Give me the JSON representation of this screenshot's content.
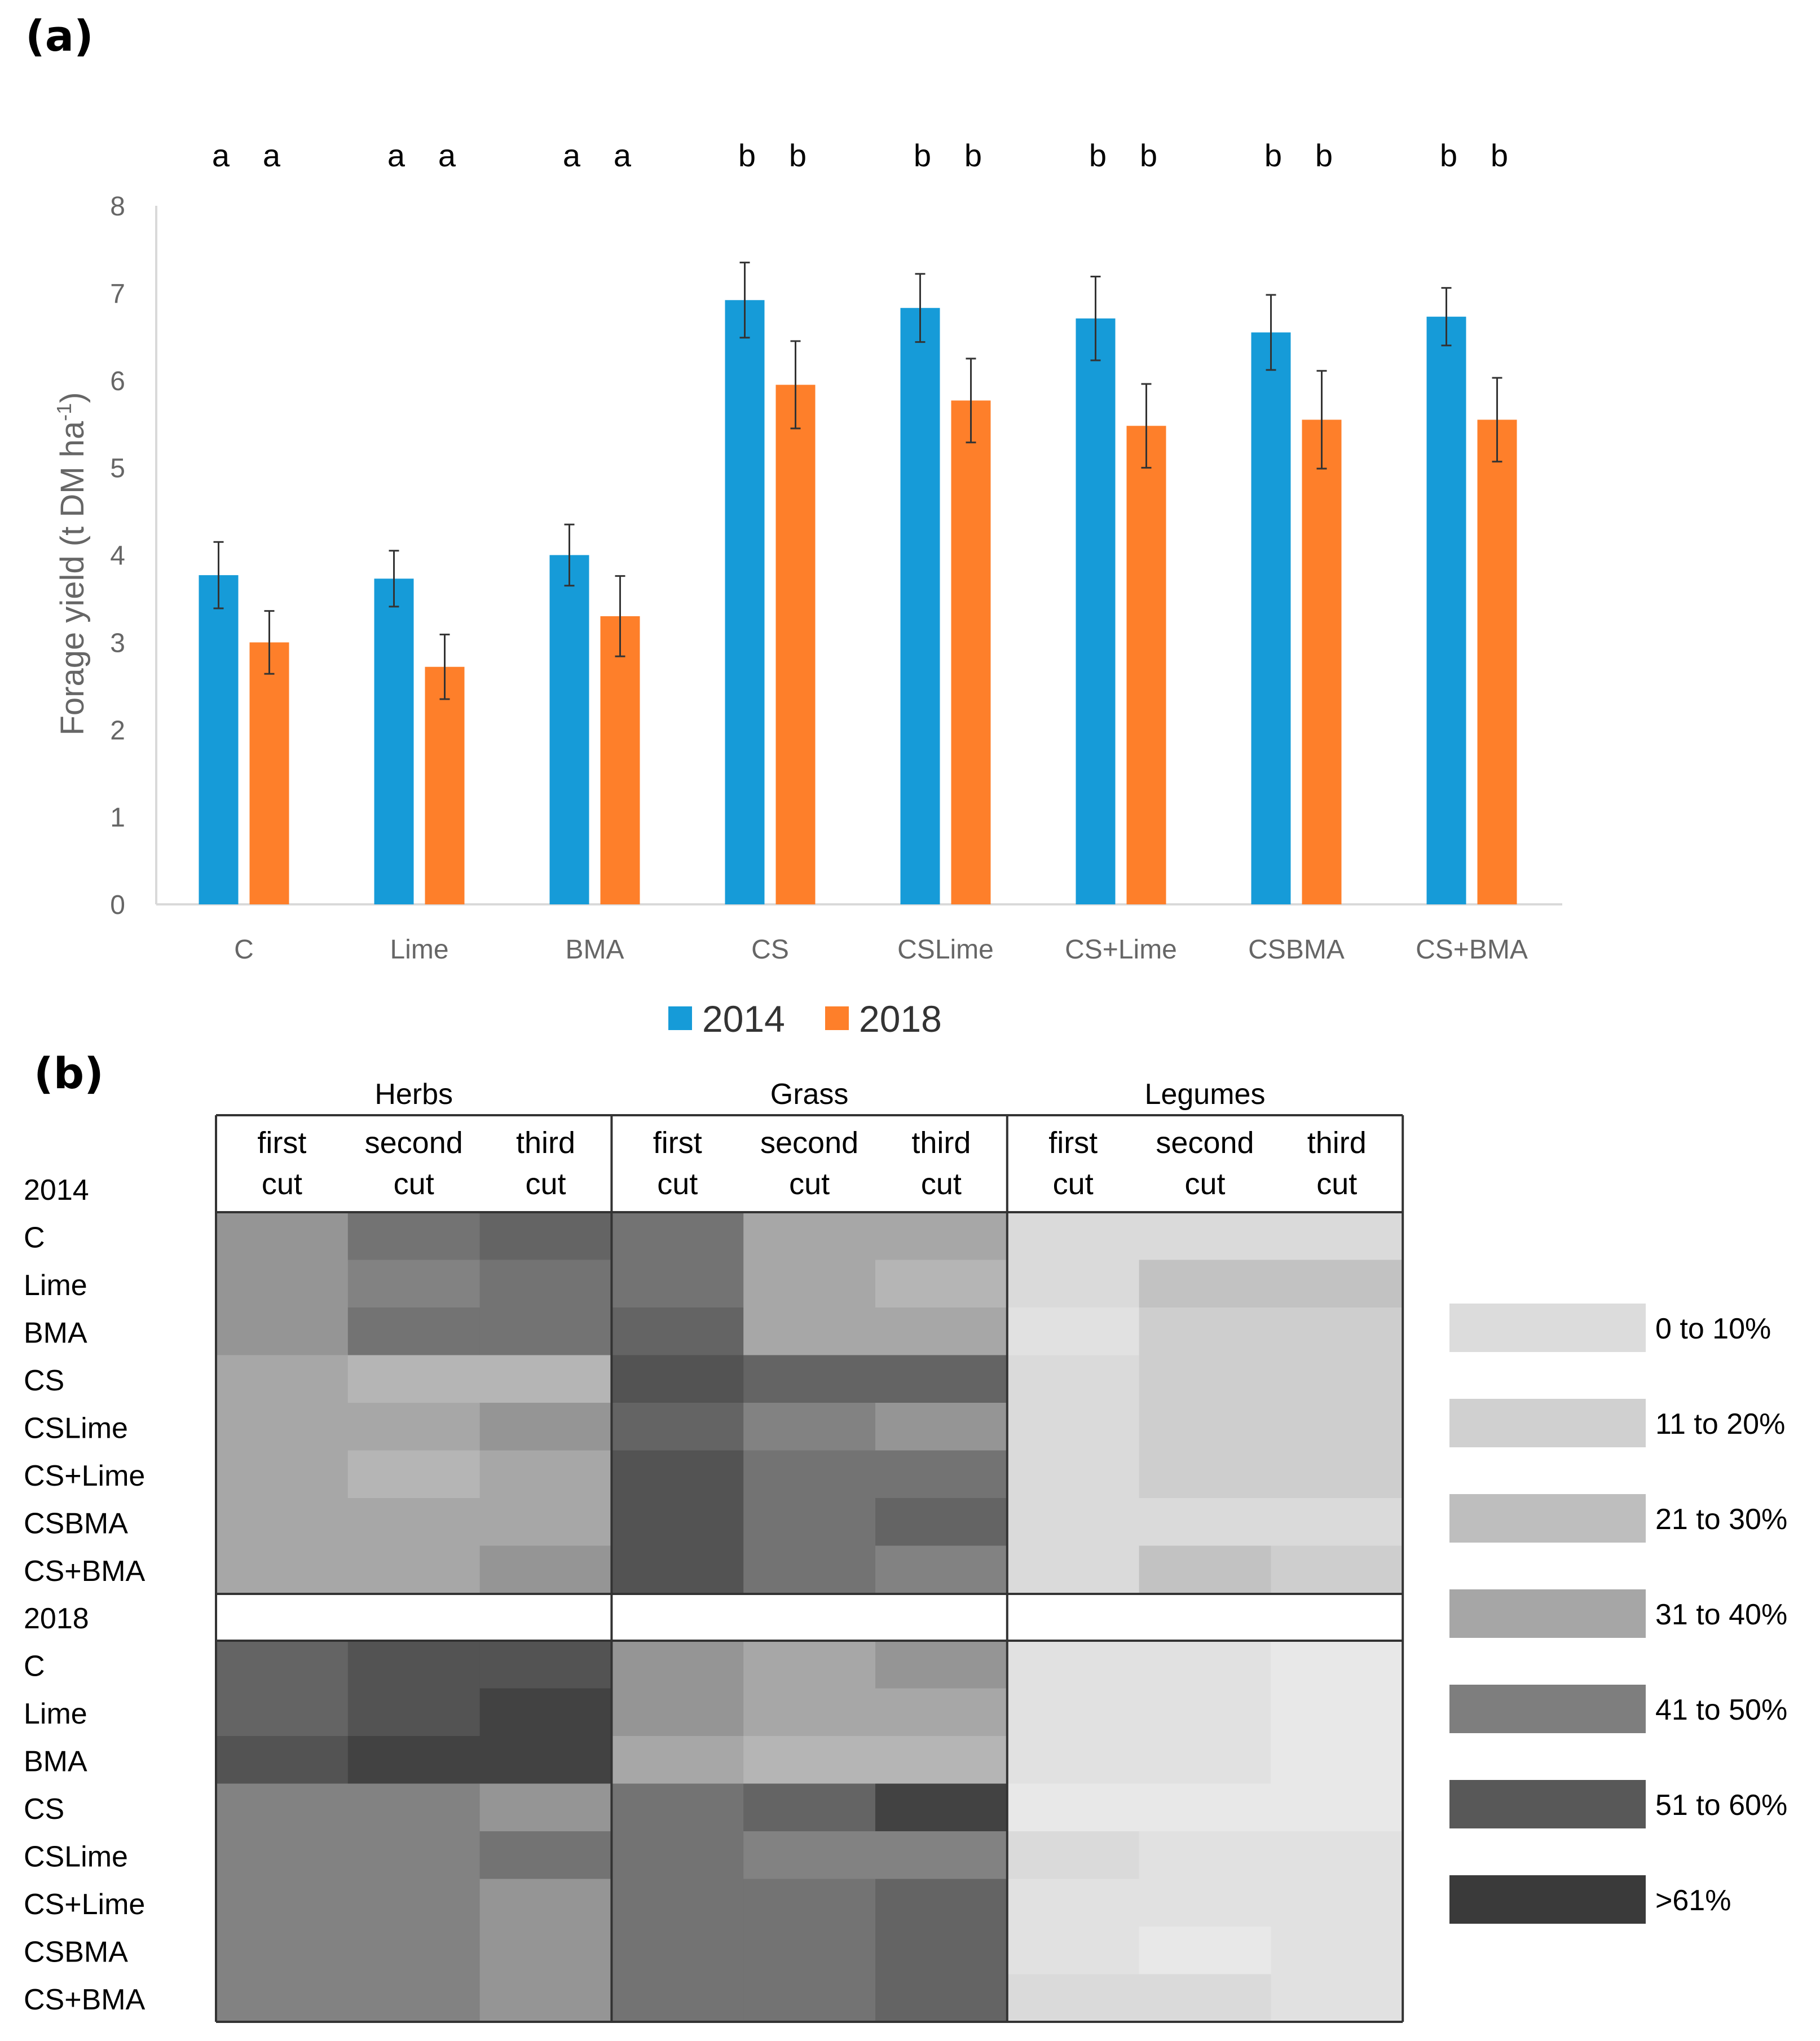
{
  "panel_a_label": "(a)",
  "panel_b_label": "(b)",
  "chart_data": [
    {
      "type": "bar",
      "panel": "(a)",
      "title": "",
      "ylabel": "Forage yield (t DM ha",
      "ylabel_unit_sup": "-1",
      "ylabel_close": ")",
      "xlabel": "",
      "ylim": [
        0,
        8
      ],
      "yticks": [
        "0",
        "1",
        "2",
        "3",
        "4",
        "5",
        "6",
        "7",
        "8"
      ],
      "grid": false,
      "legend_position": "bottom",
      "categories": [
        "C",
        "Lime",
        "BMA",
        "CS",
        "CSLime",
        "CS+Lime",
        "CSBMA",
        "CS+BMA"
      ],
      "series": [
        {
          "name": "2014",
          "color": "#169bd8",
          "values": [
            3.77,
            3.73,
            4.0,
            6.92,
            6.83,
            6.71,
            6.55,
            6.73
          ],
          "error": [
            0.38,
            0.32,
            0.35,
            0.43,
            0.39,
            0.48,
            0.43,
            0.33
          ],
          "letters": [
            "a",
            "a",
            "a",
            "b",
            "b",
            "b",
            "b",
            "b"
          ]
        },
        {
          "name": "2018",
          "color": "#fe7f2a",
          "values": [
            3.0,
            2.72,
            3.3,
            5.95,
            5.77,
            5.48,
            5.55,
            5.55
          ],
          "error": [
            0.36,
            0.37,
            0.46,
            0.5,
            0.48,
            0.48,
            0.56,
            0.48
          ],
          "letters": [
            "a",
            "a",
            "a",
            "b",
            "b",
            "b",
            "b",
            "b"
          ]
        }
      ]
    },
    {
      "type": "heatmap",
      "panel": "(b)",
      "groups": [
        "Herbs",
        "Grass",
        "Legumes"
      ],
      "columns": [
        {
          "line1": "first",
          "line2": "cut"
        },
        {
          "line1": "second",
          "line2": "cut"
        },
        {
          "line1": "third",
          "line2": "cut"
        },
        {
          "line1": "first",
          "line2": "cut"
        },
        {
          "line1": "second",
          "line2": "cut"
        },
        {
          "line1": "third",
          "line2": "cut"
        },
        {
          "line1": "first",
          "line2": "cut"
        },
        {
          "line1": "second",
          "line2": "cut"
        },
        {
          "line1": "third",
          "line2": "cut"
        }
      ],
      "blocks": [
        {
          "year": "2014",
          "rows": [
            "C",
            "Lime",
            "BMA",
            "CS",
            "CSLime",
            "CS+Lime",
            "CSBMA",
            "CS+BMA"
          ],
          "values": [
            [
              40,
              50,
              55,
              50,
              35,
              35,
              15,
              15,
              15
            ],
            [
              40,
              45,
              50,
              50,
              35,
              30,
              15,
              25,
              25
            ],
            [
              40,
              50,
              50,
              55,
              35,
              35,
              10,
              20,
              20
            ],
            [
              35,
              30,
              30,
              60,
              55,
              55,
              15,
              20,
              20
            ],
            [
              35,
              35,
              40,
              55,
              45,
              40,
              15,
              20,
              20
            ],
            [
              35,
              30,
              35,
              60,
              50,
              50,
              15,
              20,
              20
            ],
            [
              35,
              35,
              35,
              60,
              50,
              55,
              15,
              15,
              15
            ],
            [
              35,
              35,
              40,
              60,
              50,
              45,
              15,
              25,
              20
            ]
          ]
        },
        {
          "year": "2018",
          "rows": [
            "C",
            "Lime",
            "BMA",
            "CS",
            "CSLime",
            "CS+Lime",
            "CSBMA",
            "CS+BMA"
          ],
          "values": [
            [
              55,
              60,
              60,
              40,
              35,
              40,
              10,
              10,
              5
            ],
            [
              55,
              60,
              65,
              40,
              35,
              35,
              10,
              10,
              5
            ],
            [
              60,
              65,
              70,
              35,
              30,
              30,
              10,
              10,
              5
            ],
            [
              45,
              45,
              40,
              50,
              55,
              65,
              5,
              5,
              5
            ],
            [
              45,
              45,
              50,
              50,
              45,
              45,
              15,
              10,
              10
            ],
            [
              45,
              45,
              40,
              50,
              50,
              55,
              10,
              10,
              10
            ],
            [
              45,
              45,
              40,
              50,
              50,
              55,
              10,
              5,
              10
            ],
            [
              45,
              45,
              40,
              50,
              50,
              55,
              15,
              15,
              10
            ]
          ]
        }
      ],
      "legend": [
        {
          "label": "0 to 10%",
          "color": "#dcdcdc"
        },
        {
          "label": "11 to 20%",
          "color": "#d0d0d0"
        },
        {
          "label": "21 to 30%",
          "color": "#bebebe"
        },
        {
          "label": "31 to 40%",
          "color": "#a6a6a6"
        },
        {
          "label": "41 to 50%",
          "color": "#7e7e7e"
        },
        {
          "label": "51 to 60%",
          "color": "#585858"
        },
        {
          "label": ">61%",
          "color": "#3a3a3a"
        }
      ]
    }
  ]
}
